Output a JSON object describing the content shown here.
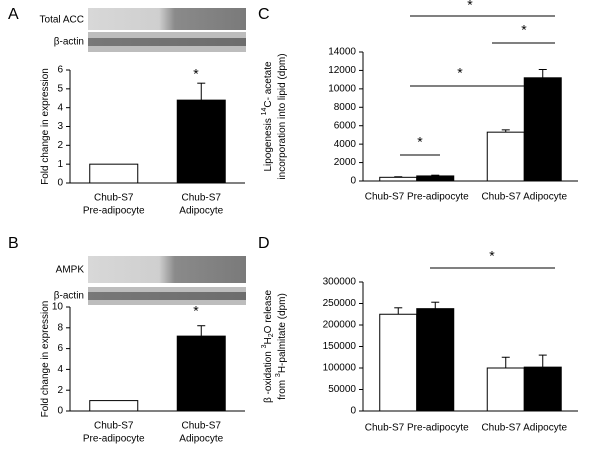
{
  "chart_data": [
    {
      "type": "bar",
      "panel": "A",
      "blot_labels": [
        "Total ACC",
        "β-actin"
      ],
      "ylabel": [
        [
          {
            "text": "Fold change in expression"
          }
        ]
      ],
      "categories": [
        [
          "Chub-S7",
          "Pre-adipocyte"
        ],
        [
          "Chub-S7",
          "Adipocyte"
        ]
      ],
      "series": [
        {
          "colors": [
            "#ffffff",
            "#000000"
          ],
          "values": [
            1,
            4.4
          ],
          "errors": [
            null,
            0.9
          ]
        }
      ],
      "ylim": [
        0,
        6
      ],
      "yticks": [
        0,
        1,
        2,
        3,
        4,
        5,
        6
      ],
      "annotations": [
        "*"
      ]
    },
    {
      "type": "bar",
      "panel": "B",
      "blot_labels": [
        "AMPK",
        "β-actin"
      ],
      "ylabel": [
        [
          {
            "text": "Fold change in expression"
          }
        ]
      ],
      "categories": [
        [
          "Chub-S7",
          "Pre-adipocyte"
        ],
        [
          "Chub-S7",
          "Adipocyte"
        ]
      ],
      "series": [
        {
          "colors": [
            "#ffffff",
            "#000000"
          ],
          "values": [
            1,
            7.2
          ],
          "errors": [
            null,
            1.0
          ]
        }
      ],
      "ylim": [
        0,
        10
      ],
      "yticks": [
        0,
        2,
        4,
        6,
        8,
        10
      ],
      "annotations": [
        "*"
      ]
    },
    {
      "type": "bar",
      "panel": "C",
      "ylabel": [
        [
          {
            "text": "Lipogenesis "
          },
          {
            "text": "14",
            "style": "sup"
          },
          {
            "text": "C- acetate"
          }
        ],
        [
          {
            "text": "incorporation into lipid (dpm)"
          }
        ]
      ],
      "categories": [
        "Chub-S7 Pre-adipocyte",
        "Chub-S7 Adipocyte"
      ],
      "series": [
        {
          "color": "#ffffff",
          "values": [
            400,
            5300
          ],
          "errors": [
            60,
            250
          ]
        },
        {
          "color": "#000000",
          "values": [
            550,
            11200
          ],
          "errors": [
            80,
            900
          ]
        }
      ],
      "ylim": [
        0,
        14000
      ],
      "yticks": [
        0,
        2000,
        4000,
        6000,
        8000,
        10000,
        12000,
        14000
      ],
      "annotations": [
        "*",
        "*",
        "*",
        "*"
      ]
    },
    {
      "type": "bar",
      "panel": "D",
      "ylabel": [
        [
          {
            "text": "β -oxidation "
          },
          {
            "text": "3",
            "style": "sup"
          },
          {
            "text": "H"
          },
          {
            "text": "2",
            "style": "sub"
          },
          {
            "text": "O release"
          }
        ],
        [
          {
            "text": "from "
          },
          {
            "text": "3",
            "style": "sup"
          },
          {
            "text": "H-palmitate (dpm)"
          }
        ]
      ],
      "categories": [
        "Chub-S7 Pre-adipocyte",
        "Chub-S7 Adipocyte"
      ],
      "series": [
        {
          "color": "#ffffff",
          "values": [
            225000,
            100000
          ],
          "errors": [
            15000,
            25000
          ]
        },
        {
          "color": "#000000",
          "values": [
            238000,
            102000
          ],
          "errors": [
            15000,
            28000
          ]
        }
      ],
      "ylim": [
        0,
        300000
      ],
      "yticks": [
        0,
        50000,
        100000,
        150000,
        200000,
        250000,
        300000
      ],
      "annotations": [
        "*"
      ]
    }
  ]
}
